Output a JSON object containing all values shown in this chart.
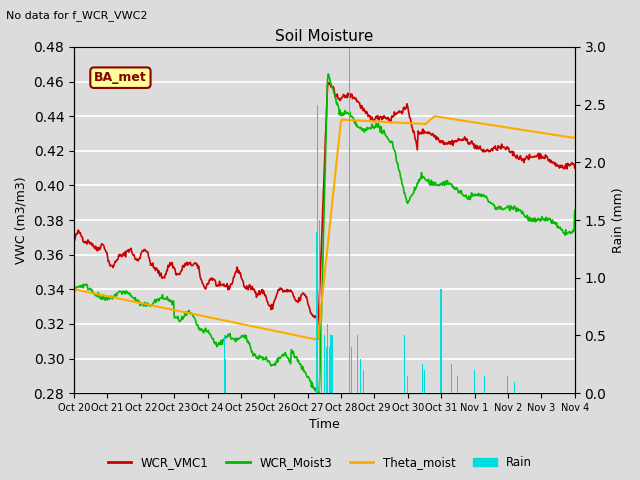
{
  "title": "Soil Moisture",
  "top_left_text": "No data for f_WCR_VWC2",
  "xlabel": "Time",
  "ylabel_left": "VWC (m3/m3)",
  "ylabel_right": "Rain (mm)",
  "ylim_left": [
    0.28,
    0.48
  ],
  "ylim_right": [
    0.0,
    3.0
  ],
  "bg_color": "#dcdcdc",
  "line_colors": {
    "WCR_VMC1": "#cc0000",
    "WCR_Moist3": "#00bb00",
    "Theta_moist": "#ffaa00",
    "Rain": "#00dddd"
  },
  "legend_labels": [
    "WCR_VMC1",
    "WCR_Moist3",
    "Theta_moist",
    "Rain"
  ],
  "annotation_text": "BA_met",
  "annotation_color": "#880000",
  "annotation_bg": "#ffff99",
  "x_tick_labels": [
    "Oct 20",
    "Oct 21",
    "Oct 22",
    "Oct 23",
    "Oct 24",
    "Oct 25",
    "Oct 26",
    "Oct 27",
    "Oct 28",
    "Oct 29",
    "Oct 30",
    "Oct 31",
    "Nov 1",
    "Nov 2",
    "Nov 3",
    "Nov 4"
  ],
  "n_days": 15
}
